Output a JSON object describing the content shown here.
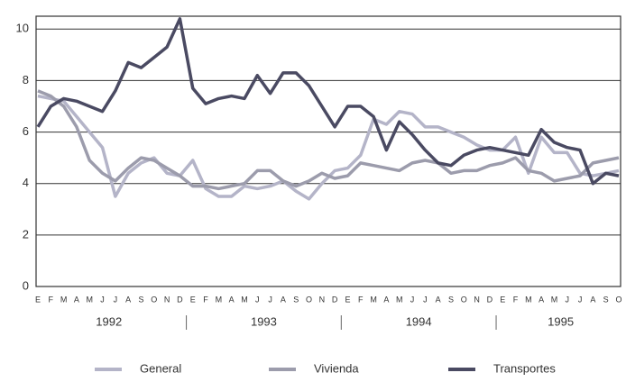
{
  "chart_data": {
    "type": "line",
    "categories": [
      "E",
      "F",
      "M",
      "A",
      "M",
      "J",
      "J",
      "A",
      "S",
      "O",
      "N",
      "D",
      "E",
      "F",
      "M",
      "A",
      "M",
      "J",
      "J",
      "A",
      "S",
      "O",
      "N",
      "D",
      "E",
      "F",
      "M",
      "A",
      "M",
      "J",
      "J",
      "A",
      "S",
      "O",
      "N",
      "D",
      "E",
      "F",
      "M",
      "A",
      "M",
      "J",
      "J",
      "A",
      "S",
      "O"
    ],
    "year_labels": [
      "1992",
      "1993",
      "1994",
      "1995"
    ],
    "series": [
      {
        "name": "General",
        "color": "#b4b4c8",
        "values": [
          7.4,
          7.3,
          7.2,
          6.6,
          6.0,
          5.4,
          3.5,
          4.4,
          4.8,
          5.0,
          4.4,
          4.3,
          4.9,
          3.8,
          3.5,
          3.5,
          3.9,
          3.8,
          3.9,
          4.1,
          3.7,
          3.4,
          4.0,
          4.5,
          4.6,
          5.1,
          6.5,
          6.3,
          6.8,
          6.7,
          6.2,
          6.2,
          6.0,
          5.8,
          5.5,
          5.3,
          5.3,
          5.8,
          4.4,
          5.8,
          5.2,
          5.2,
          4.4,
          4.3,
          4.4,
          4.5
        ]
      },
      {
        "name": "Vivienda",
        "color": "#9c9cac",
        "values": [
          7.6,
          7.4,
          7.0,
          6.2,
          4.9,
          4.4,
          4.1,
          4.6,
          5.0,
          4.9,
          4.6,
          4.3,
          3.9,
          3.9,
          3.8,
          3.9,
          4.0,
          4.5,
          4.5,
          4.1,
          3.9,
          4.1,
          4.4,
          4.2,
          4.3,
          4.8,
          4.7,
          4.6,
          4.5,
          4.8,
          4.9,
          4.8,
          4.4,
          4.5,
          4.5,
          4.7,
          4.8,
          5.0,
          4.5,
          4.4,
          4.1,
          4.2,
          4.3,
          4.8,
          4.9,
          5.0
        ]
      },
      {
        "name": "Transportes",
        "color": "#4a4a62",
        "values": [
          6.2,
          7.0,
          7.3,
          7.2,
          7.0,
          6.8,
          7.6,
          8.7,
          8.5,
          8.9,
          9.3,
          10.4,
          7.7,
          7.1,
          7.3,
          7.4,
          7.3,
          8.2,
          7.5,
          8.3,
          8.3,
          7.8,
          7.0,
          6.2,
          7.0,
          7.0,
          6.6,
          5.3,
          6.4,
          5.9,
          5.3,
          4.8,
          4.7,
          5.1,
          5.3,
          5.4,
          5.3,
          5.2,
          5.1,
          6.1,
          5.6,
          5.4,
          5.3,
          4.0,
          4.4,
          4.3
        ]
      }
    ],
    "ylim": [
      0,
      10.5
    ],
    "yticks": [
      0,
      2,
      4,
      6,
      8,
      10
    ],
    "grid": true
  }
}
